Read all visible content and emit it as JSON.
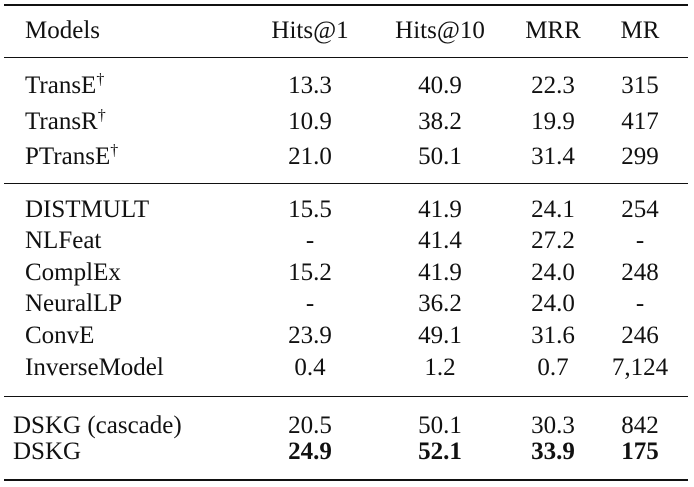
{
  "table": {
    "header": [
      "Models",
      "Hits@1",
      "Hits@10",
      "MRR",
      "MR"
    ],
    "groups": [
      {
        "rows": [
          {
            "model": {
              "name": "TransE",
              "note": "†"
            },
            "cells": [
              "13.3",
              "40.9",
              "22.3",
              "315"
            ]
          },
          {
            "model": {
              "name": "TransR",
              "note": "†"
            },
            "cells": [
              "10.9",
              "38.2",
              "19.9",
              "417"
            ]
          },
          {
            "model": {
              "name": "PTransE",
              "note": "†"
            },
            "cells": [
              "21.0",
              "50.1",
              "31.4",
              "299"
            ]
          }
        ]
      },
      {
        "rows": [
          {
            "model": {
              "name": "DISTMULT"
            },
            "cells": [
              "15.5",
              "41.9",
              "24.1",
              "254"
            ]
          },
          {
            "model": {
              "name": "NLFeat"
            },
            "cells": [
              "-",
              "41.4",
              "27.2",
              "-"
            ]
          },
          {
            "model": {
              "name": "ComplEx"
            },
            "cells": [
              "15.2",
              "41.9",
              "24.0",
              "248"
            ]
          },
          {
            "model": {
              "name": "NeuralLP"
            },
            "cells": [
              "-",
              "36.2",
              "24.0",
              "-"
            ]
          },
          {
            "model": {
              "name": "ConvE"
            },
            "cells": [
              "23.9",
              "49.1",
              "31.6",
              "246"
            ]
          },
          {
            "model": {
              "name": "InverseModel"
            },
            "cells": [
              "0.4",
              "1.2",
              "0.7",
              "7,124"
            ]
          }
        ]
      },
      {
        "rows": [
          {
            "model": {
              "name": "DSKG (cascade)"
            },
            "cells": [
              "20.5",
              "50.1",
              "30.3",
              "842"
            ]
          },
          {
            "model": {
              "name": "DSKG"
            },
            "cells": [
              "24.9",
              "52.1",
              "33.9",
              "175"
            ],
            "bold": true
          }
        ]
      }
    ]
  }
}
